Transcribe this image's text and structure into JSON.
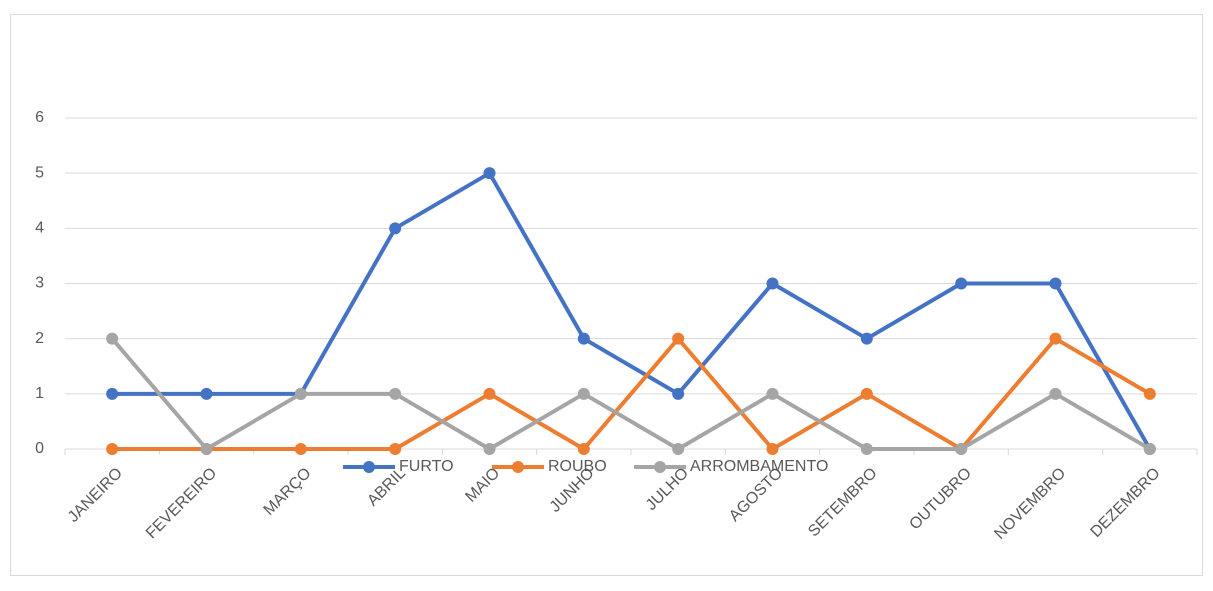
{
  "chart_data": {
    "type": "line",
    "categories": [
      "JANEIRO",
      "FEVEREIRO",
      "MARÇO",
      "ABRIL",
      "MAIO",
      "JUNHO",
      "JULHO",
      "AGOSTO",
      "SETEMBRO",
      "OUTUBRO",
      "NOVEMBRO",
      "DEZEMBRO"
    ],
    "series": [
      {
        "name": "FURTO",
        "color": "#4472c4",
        "values": [
          1,
          1,
          1,
          4,
          5,
          2,
          1,
          3,
          2,
          3,
          3,
          0
        ]
      },
      {
        "name": "ROUBO",
        "color": "#ed7d31",
        "values": [
          0,
          0,
          0,
          0,
          1,
          0,
          2,
          0,
          1,
          0,
          2,
          1
        ]
      },
      {
        "name": "ARROMBAMENTO",
        "color": "#a5a5a5",
        "values": [
          2,
          0,
          1,
          1,
          0,
          1,
          0,
          1,
          0,
          0,
          1,
          0
        ]
      }
    ],
    "ylim": [
      0,
      6
    ],
    "yticks": [
      0,
      1,
      2,
      3,
      4,
      5,
      6
    ],
    "grid": true,
    "legend": "bottom"
  }
}
